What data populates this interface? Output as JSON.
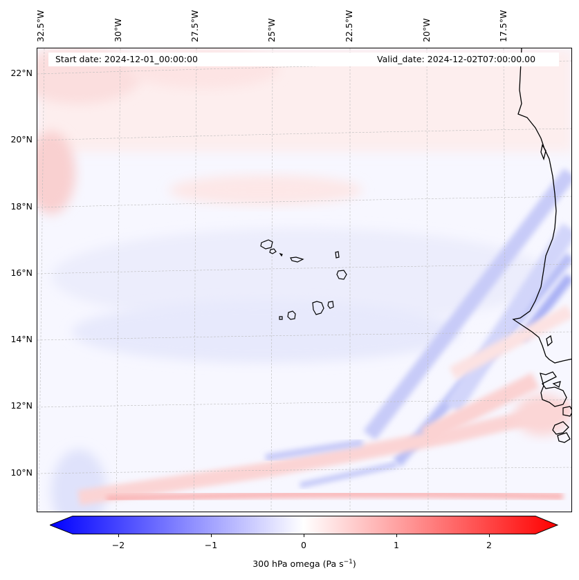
{
  "header": {
    "start_date": "Start date: 2024-12-01_00:00:00",
    "valid_date": "Valid_date: 2024-12-02T07:00:00.00"
  },
  "longitude_ticks": [
    "32.5°W",
    "30°W",
    "27.5°W",
    "25°W",
    "22.5°W",
    "20°W",
    "17.5°W"
  ],
  "latitude_ticks": [
    "22°N",
    "20°N",
    "18°N",
    "16°N",
    "14°N",
    "12°N",
    "10°N"
  ],
  "colorbar": {
    "label": "300 hPa omega (Pa s",
    "label_sup": "−1",
    "label_end": ")",
    "ticks": [
      "−2",
      "−1",
      "0",
      "1",
      "2"
    ],
    "range": [
      -2.75,
      2.75
    ],
    "min_color": "#0000ff",
    "mid_color": "#ffffff",
    "max_color": "#ff0000"
  },
  "map": {
    "field": "300 hPa omega",
    "colormap": "bwr",
    "gridlines": true,
    "coastline_color": "#000000",
    "region": "Cape Verde and West African coast"
  }
}
